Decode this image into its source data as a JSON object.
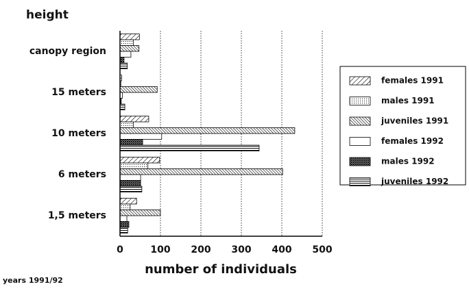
{
  "chart_data": {
    "type": "hbar",
    "y_axis_label": "height",
    "x_axis_label": "number of individuals",
    "footnote": "years 1991/92",
    "categories": [
      "canopy region",
      "15 meters",
      "10 meters",
      "6 meters",
      "1,5 meters"
    ],
    "series": [
      {
        "name": "females 1991",
        "color": "#000000",
        "pattern": "diagonal",
        "values": [
          48,
          4,
          71,
          98,
          41
        ]
      },
      {
        "name": "males 1991",
        "color": "#000000",
        "pattern": "dots",
        "values": [
          33,
          2,
          33,
          69,
          25
        ]
      },
      {
        "name": "juveniles 1991",
        "color": "#000000",
        "pattern": "dense-diagonal",
        "values": [
          47,
          92,
          432,
          402,
          100
        ]
      },
      {
        "name": "females 1992",
        "color": "#000000",
        "pattern": "none",
        "values": [
          27,
          6,
          103,
          51,
          17
        ]
      },
      {
        "name": "males 1992",
        "color": "#000000",
        "pattern": "crosshatch",
        "values": [
          10,
          3,
          56,
          51,
          22
        ]
      },
      {
        "name": "juveniles 1992",
        "color": "#000000",
        "pattern": "horizontal",
        "values": [
          18,
          12,
          344,
          54,
          19
        ]
      }
    ],
    "xlim": [
      0,
      500
    ],
    "xticks": [
      0,
      100,
      200,
      300,
      400,
      500
    ],
    "grid": true,
    "legend": "right"
  }
}
